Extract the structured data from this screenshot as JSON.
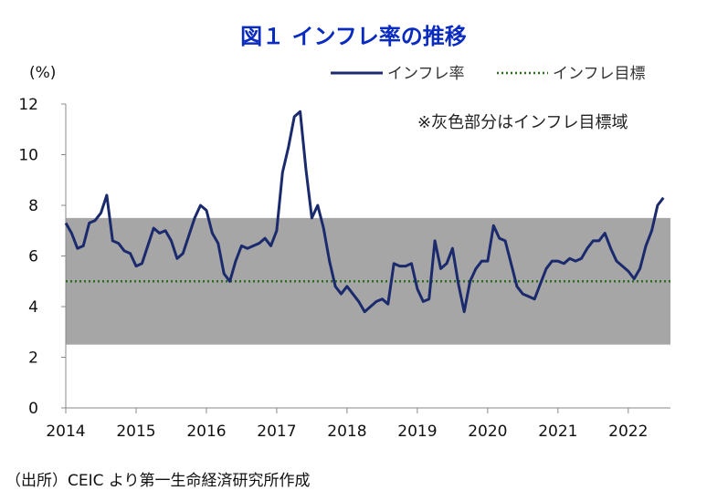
{
  "chart_data": {
    "type": "line",
    "title": "図１ インフレ率の推移",
    "ylabel": "(%)",
    "ylim": [
      0,
      12
    ],
    "yticks": [
      0,
      2,
      4,
      6,
      8,
      10,
      12
    ],
    "xlim": [
      2014,
      2022.6
    ],
    "xticks": [
      "2014",
      "2015",
      "2016",
      "2017",
      "2018",
      "2019",
      "2020",
      "2021",
      "2022"
    ],
    "target_band": [
      2.5,
      7.5
    ],
    "target_line": 5,
    "note": "※灰色部分はインフレ目標域",
    "legend": [
      "インフレ率",
      "インフレ目標"
    ],
    "source": "（出所）CEIC より第一生命経済研究所作成",
    "colors": {
      "series": "#1a2a6c",
      "target": "#2e6b1e",
      "band": "#a6a6a6",
      "title": "#0a2bbf"
    },
    "series": [
      {
        "name": "インフレ率",
        "start": 2014.0,
        "step_months": 1,
        "values": [
          7.3,
          6.9,
          6.3,
          6.4,
          7.3,
          7.4,
          7.7,
          8.4,
          6.6,
          6.5,
          6.2,
          6.1,
          5.6,
          5.7,
          6.4,
          7.1,
          6.9,
          7.0,
          6.6,
          5.9,
          6.1,
          6.8,
          7.5,
          8.0,
          7.8,
          6.9,
          6.5,
          5.3,
          5.0,
          5.8,
          6.4,
          6.3,
          6.4,
          6.5,
          6.7,
          6.4,
          7.0,
          9.3,
          10.3,
          11.5,
          11.7,
          9.4,
          7.5,
          8.0,
          7.1,
          5.8,
          4.8,
          4.5,
          4.8,
          4.5,
          4.2,
          3.8,
          4.0,
          4.2,
          4.3,
          4.1,
          5.7,
          5.6,
          5.6,
          5.7,
          4.7,
          4.2,
          4.3,
          6.6,
          5.5,
          5.7,
          6.3,
          4.9,
          3.8,
          5.0,
          5.5,
          5.8,
          5.8,
          7.2,
          6.7,
          6.6,
          5.7,
          4.8,
          4.5,
          4.4,
          4.3,
          4.9,
          5.5,
          5.8,
          5.8,
          5.7,
          5.9,
          5.8,
          5.9,
          6.3,
          6.6,
          6.6,
          6.9,
          6.3,
          5.8,
          5.6,
          5.4,
          5.1,
          5.5,
          6.4,
          7.0,
          8.0,
          8.3
        ]
      }
    ]
  }
}
